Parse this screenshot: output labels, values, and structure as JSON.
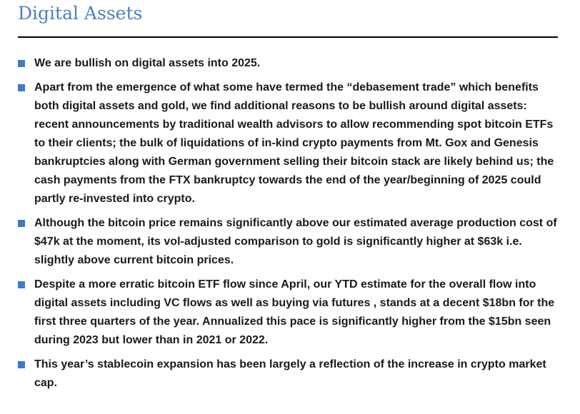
{
  "title": "Digital Assets",
  "bullet_color": "#3d7cc0",
  "title_color": "#4a82bd",
  "bullets": [
    "We are bullish on digital assets into 2025.",
    "Apart from the emergence of what some have termed the “debasement trade” which benefits both digital assets and gold, we find additional reasons to be bullish around digital assets: recent announcements by traditional wealth advisors to allow recommending spot bitcoin ETFs to their clients; the bulk of liquidations of in-kind crypto payments from Mt. Gox and Genesis bankruptcies along with German government selling their bitcoin stack are likely behind us; the cash payments from the FTX bankruptcy towards the end of the year/beginning of 2025 could partly re-invested into crypto.",
    "Although the bitcoin price remains significantly above our estimated average production cost of $47k at the moment, its vol-adjusted comparison to gold is significantly higher at $63k i.e.  slightly above current bitcoin prices.",
    "Despite a more erratic bitcoin ETF flow since April, our YTD estimate for the  overall flow into digital assets including VC flows as well as buying via futures , stands at a decent $18bn for the first three quarters of the year. Annualized this pace is significantly higher from the $15bn seen during 2023 but lower than in 2021 or 2022.",
    "This year’s stablecoin expansion has been largely a reflection of the increase in crypto market cap."
  ]
}
